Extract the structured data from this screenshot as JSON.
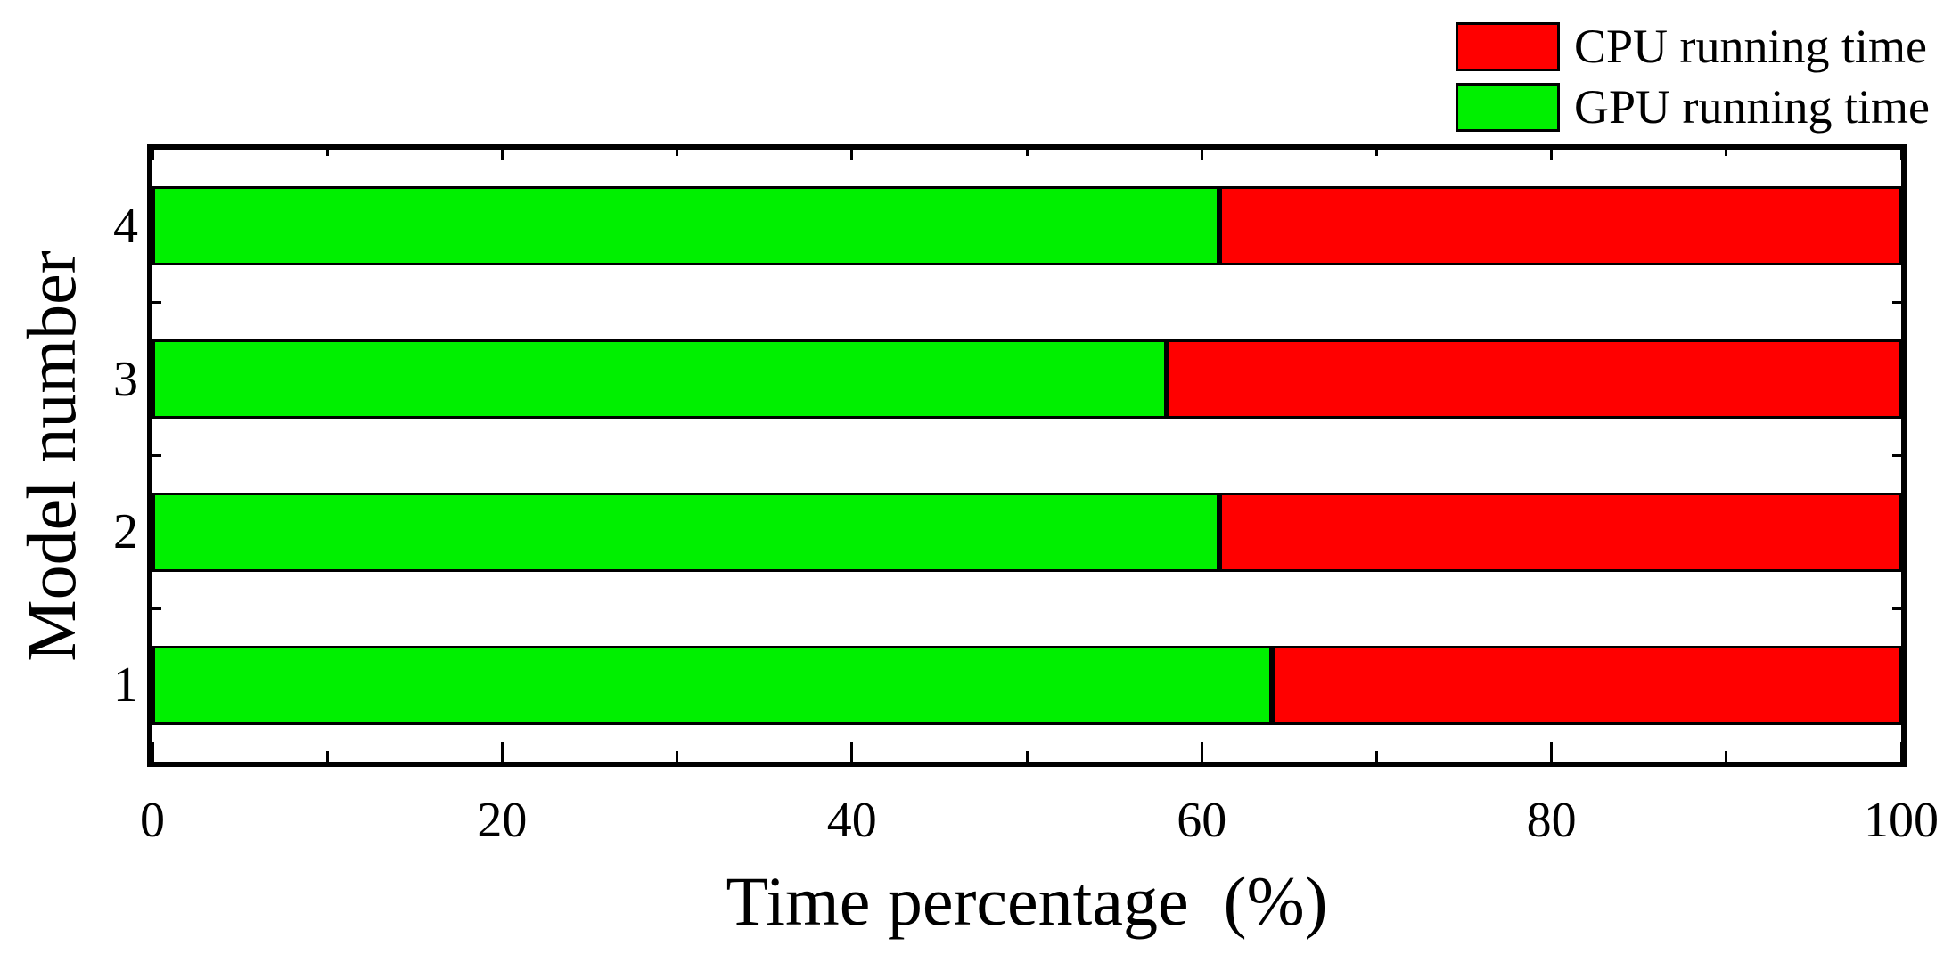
{
  "legend": {
    "items": [
      {
        "id": "cpu",
        "label": "CPU running time",
        "color": "#ff0000"
      },
      {
        "id": "gpu",
        "label": "GPU running time",
        "color": "#00f000"
      }
    ]
  },
  "chart_data": {
    "type": "bar",
    "orientation": "horizontal",
    "stacked": true,
    "title": "",
    "xlabel": "Time percentage  (%)",
    "ylabel": "Model number",
    "categories": [
      "1",
      "2",
      "3",
      "4"
    ],
    "series": [
      {
        "name": "GPU running time",
        "color": "#00f000",
        "values": [
          64,
          61,
          58,
          61
        ]
      },
      {
        "name": "CPU running time",
        "color": "#ff0000",
        "values": [
          36,
          39,
          42,
          39
        ]
      }
    ],
    "xlim": [
      0,
      100
    ],
    "x_major_ticks": [
      0,
      20,
      40,
      60,
      80,
      100
    ],
    "x_minor_tick_step": 10,
    "x_tick_labels": [
      "0",
      "20",
      "40",
      "60",
      "80",
      "100"
    ],
    "y_tick_labels_top_to_bottom": [
      "4",
      "3",
      "2",
      "1"
    ],
    "grid": false,
    "legend_position": "top-right-outside",
    "frame": true,
    "tick_direction": "in"
  }
}
